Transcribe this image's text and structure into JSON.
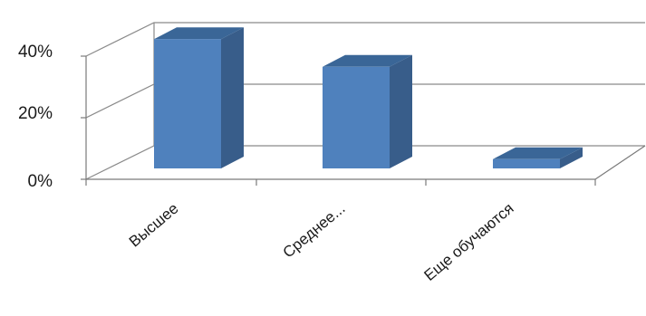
{
  "chart_data": {
    "type": "bar",
    "categories": [
      "Высшее",
      "Среднее...",
      "Еще обучаются"
    ],
    "values": [
      42,
      33,
      3
    ],
    "yticks": [
      "0%",
      "20%",
      "40%"
    ],
    "ylim": [
      0,
      40
    ],
    "grid": true,
    "colors": {
      "front": "#4f81bd",
      "side": "#385d8a",
      "top": "#3a6697"
    }
  }
}
